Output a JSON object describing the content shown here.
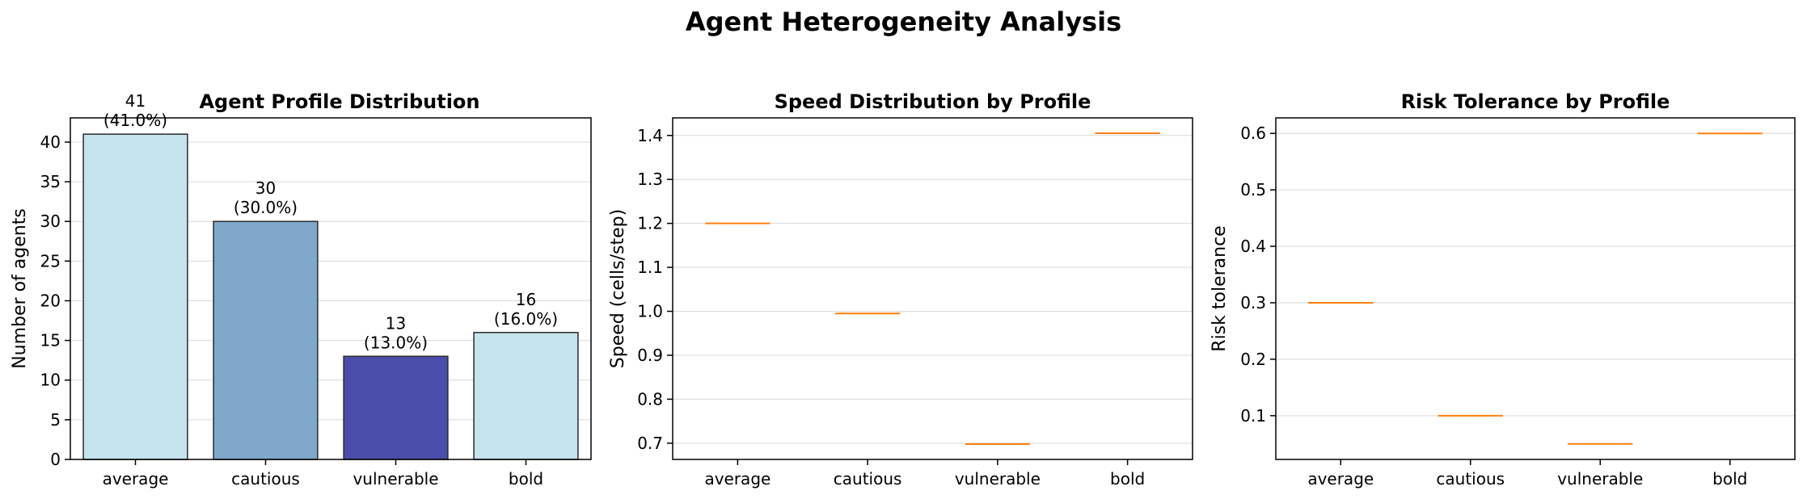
{
  "suptitle": "Agent Heterogeneity Analysis",
  "chart_data": [
    {
      "type": "bar",
      "title": "Agent Profile Distribution",
      "xlabel": "",
      "ylabel": "Number of agents",
      "categories": [
        "average",
        "cautious",
        "vulnerable",
        "bold"
      ],
      "values": [
        41,
        30,
        13,
        16
      ],
      "data_labels": [
        "41\n(41.0%)",
        "30\n(30.0%)",
        "13\n(13.0%)",
        "16\n(16.0%)"
      ],
      "colors": [
        "#c5e3ed",
        "#7fa8cb",
        "#4b4dab",
        "#c5e3ed"
      ],
      "edge_color": "#2b2b2b",
      "ylim": [
        0,
        43.05
      ],
      "yticks": [
        0,
        5,
        10,
        15,
        20,
        25,
        30,
        35,
        40
      ],
      "grid": "y"
    },
    {
      "type": "box",
      "title": "Speed Distribution by Profile",
      "xlabel": "",
      "ylabel": "Speed (cells/step)",
      "categories": [
        "average",
        "cautious",
        "vulnerable",
        "bold"
      ],
      "values": [
        1.2,
        0.995,
        0.698,
        1.405
      ],
      "median_color": "#ff7f0e",
      "ylim": [
        0.663,
        1.44
      ],
      "yticks": [
        0.7,
        0.8,
        0.9,
        1.0,
        1.1,
        1.2,
        1.3,
        1.4
      ],
      "ytick_labels": [
        "0.7",
        "0.8",
        "0.9",
        "1.0",
        "1.1",
        "1.2",
        "1.3",
        "1.4"
      ],
      "grid": "y"
    },
    {
      "type": "box",
      "title": "Risk Tolerance by Profile",
      "xlabel": "",
      "ylabel": "Risk tolerance",
      "categories": [
        "average",
        "cautious",
        "vulnerable",
        "bold"
      ],
      "values": [
        0.3,
        0.1,
        0.05,
        0.6
      ],
      "median_color": "#ff7f0e",
      "ylim": [
        0.0225,
        0.6275
      ],
      "yticks": [
        0.1,
        0.2,
        0.3,
        0.4,
        0.5,
        0.6
      ],
      "ytick_labels": [
        "0.1",
        "0.2",
        "0.3",
        "0.4",
        "0.5",
        "0.6"
      ],
      "grid": "y"
    }
  ]
}
